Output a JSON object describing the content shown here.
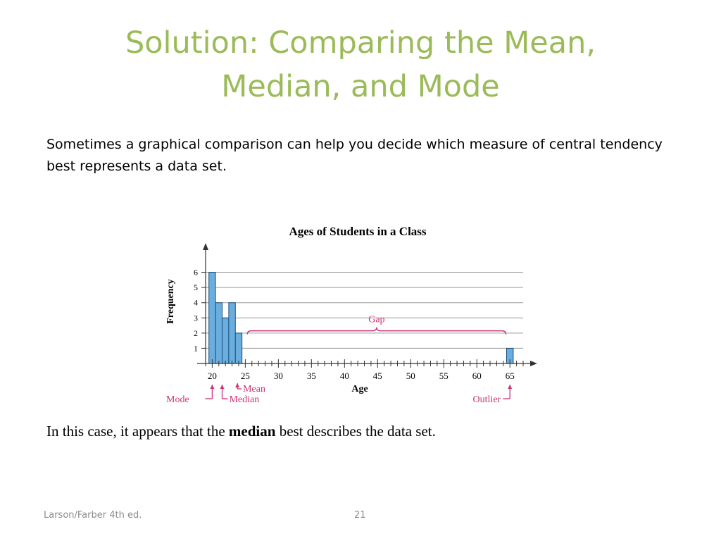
{
  "slide": {
    "title_line1": "Solution: Comparing the Mean,",
    "title_line2": "Median, and Mode",
    "intro_text": "Sometimes a graphical comparison can help you decide which measure of central tendency best represents a data set.",
    "conclusion_prefix": "In this case, it appears that the ",
    "conclusion_bold": "median",
    "conclusion_suffix": " best describes the data set.",
    "footer_left": "Larson/Farber 4th ed.",
    "page_number": "21",
    "title_color": "#9bbb59"
  },
  "chart_data": {
    "type": "bar",
    "title": "Ages of Students in a Class",
    "xlabel": "Age",
    "ylabel": "Frequency",
    "x": [
      20,
      21,
      22,
      23,
      24,
      65
    ],
    "values": [
      6,
      4,
      3,
      4,
      2,
      1
    ],
    "xlim": [
      19,
      67
    ],
    "ylim": [
      0,
      7
    ],
    "x_tick_labels": [
      "20",
      "25",
      "30",
      "35",
      "40",
      "45",
      "50",
      "55",
      "60",
      "65"
    ],
    "y_tick_labels": [
      "1",
      "2",
      "3",
      "4",
      "5",
      "6"
    ],
    "grid": "horizontal",
    "bar_color": "#6aaee0",
    "annotations": {
      "gap": "Gap",
      "mode": "Mode",
      "median": "Median",
      "mean": "Mean",
      "outlier": "Outlier"
    },
    "annotation_color": "#cc3377"
  }
}
